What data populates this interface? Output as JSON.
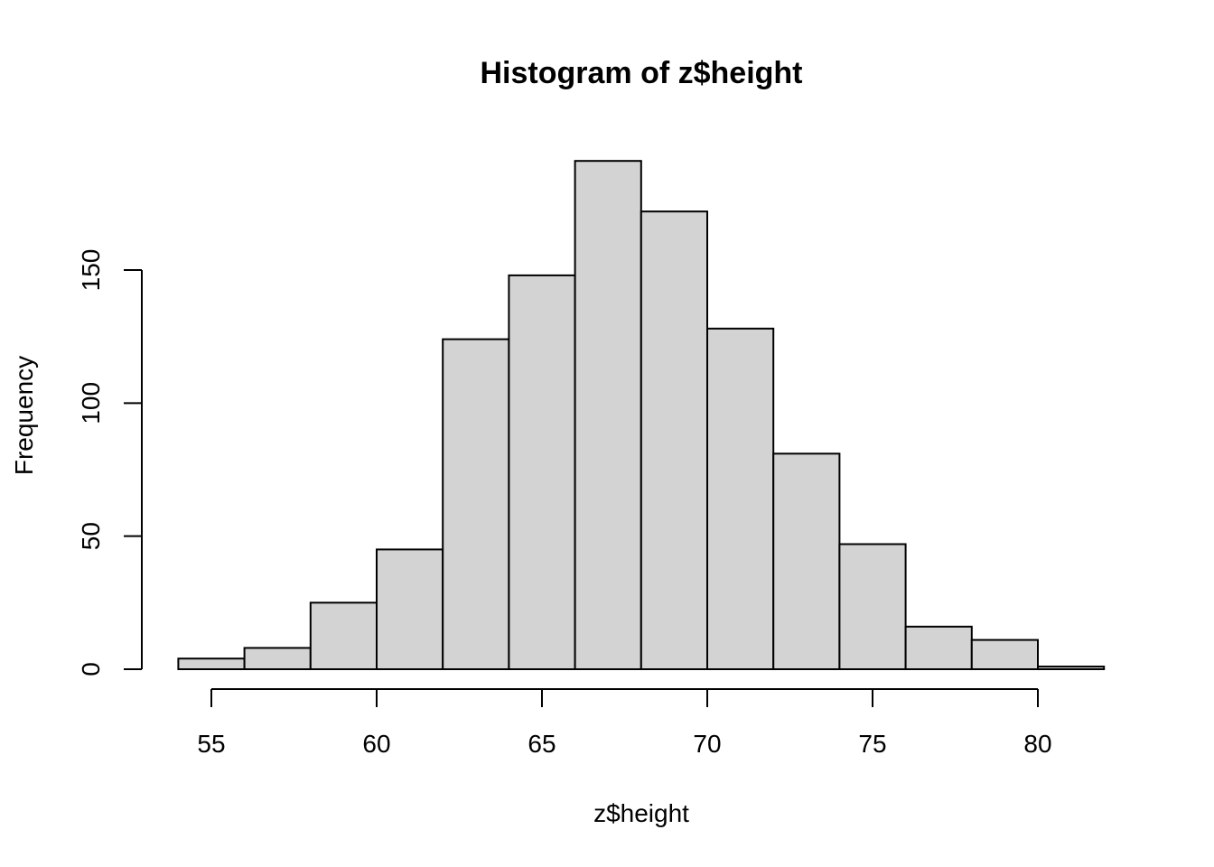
{
  "chart_data": {
    "type": "bar",
    "title": "Histogram of z$height",
    "xlabel": "z$height",
    "ylabel": "Frequency",
    "bins": [
      {
        "start": 54,
        "end": 56,
        "value": 4
      },
      {
        "start": 56,
        "end": 58,
        "value": 8
      },
      {
        "start": 58,
        "end": 60,
        "value": 25
      },
      {
        "start": 60,
        "end": 62,
        "value": 45
      },
      {
        "start": 62,
        "end": 64,
        "value": 124
      },
      {
        "start": 64,
        "end": 66,
        "value": 148
      },
      {
        "start": 66,
        "end": 68,
        "value": 191
      },
      {
        "start": 68,
        "end": 70,
        "value": 172
      },
      {
        "start": 70,
        "end": 72,
        "value": 128
      },
      {
        "start": 72,
        "end": 74,
        "value": 81
      },
      {
        "start": 74,
        "end": 76,
        "value": 47
      },
      {
        "start": 76,
        "end": 78,
        "value": 16
      },
      {
        "start": 78,
        "end": 80,
        "value": 11
      },
      {
        "start": 80,
        "end": 82,
        "value": 1
      }
    ],
    "xticks": [
      55,
      60,
      65,
      70,
      75,
      80
    ],
    "yticks": [
      0,
      50,
      100,
      150
    ],
    "xlim": [
      54,
      82
    ],
    "ylim": [
      0,
      191
    ],
    "bar_color": "#d3d3d3",
    "grid": false,
    "legend": "none"
  }
}
